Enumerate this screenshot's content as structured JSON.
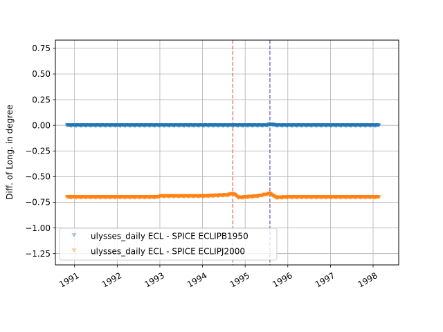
{
  "chart_data": {
    "type": "scatter",
    "title": "",
    "xlabel": "",
    "ylabel": "Diff. of Long. in degree",
    "xlim": [
      1990.55,
      1998.6
    ],
    "ylim": [
      -1.36,
      0.83
    ],
    "x_ticks": [
      1991,
      1992,
      1993,
      1994,
      1995,
      1996,
      1997,
      1998
    ],
    "x_tick_labels": [
      "1991",
      "1992",
      "1993",
      "1994",
      "1995",
      "1996",
      "1997",
      "1998"
    ],
    "y_ticks": [
      0.75,
      0.5,
      0.25,
      0.0,
      -0.25,
      -0.5,
      -0.75,
      -1.0,
      -1.25
    ],
    "y_tick_labels": [
      "0.75",
      "0.50",
      "0.25",
      "0.00",
      "−0.25",
      "−0.50",
      "−0.75",
      "−1.00",
      "−1.25"
    ],
    "grid": true,
    "legend_position": "lower-left",
    "vlines": [
      {
        "x": 1994.71,
        "color": "#d62728"
      },
      {
        "x": 1995.58,
        "color": "#1f1f99"
      }
    ],
    "series": [
      {
        "name": "ulysses_daily ECL - SPICE ECLIPB1950",
        "color": "#1f77b4",
        "marker": "triangle-down",
        "x": [
          1990.82,
          1991.0,
          1991.5,
          1992.0,
          1992.5,
          1993.0,
          1993.5,
          1994.0,
          1994.5,
          1995.0,
          1995.5,
          1995.62,
          1995.7,
          1996.0,
          1996.5,
          1997.0,
          1997.5,
          1998.0,
          1998.14
        ],
        "y": [
          0.0,
          0.0,
          0.0,
          0.0,
          0.0,
          0.0,
          0.0,
          0.0,
          0.0,
          0.0,
          0.0,
          0.01,
          0.0,
          0.0,
          0.0,
          0.0,
          0.0,
          0.0,
          0.0
        ]
      },
      {
        "name": "ulysses_daily ECL - SPICE ECLIPJ2000",
        "color": "#ff7f0e",
        "marker": "triangle-down",
        "x": [
          1990.82,
          1991.0,
          1991.5,
          1992.0,
          1992.5,
          1992.95,
          1993.0,
          1993.5,
          1994.0,
          1994.3,
          1994.6,
          1994.71,
          1994.85,
          1995.0,
          1995.3,
          1995.58,
          1995.72,
          1996.0,
          1996.5,
          1997.0,
          1997.5,
          1998.0,
          1998.14
        ],
        "y": [
          -0.7,
          -0.7,
          -0.7,
          -0.7,
          -0.7,
          -0.7,
          -0.69,
          -0.69,
          -0.69,
          -0.685,
          -0.68,
          -0.665,
          -0.705,
          -0.7,
          -0.69,
          -0.665,
          -0.705,
          -0.7,
          -0.7,
          -0.7,
          -0.7,
          -0.7,
          -0.7
        ]
      }
    ]
  }
}
